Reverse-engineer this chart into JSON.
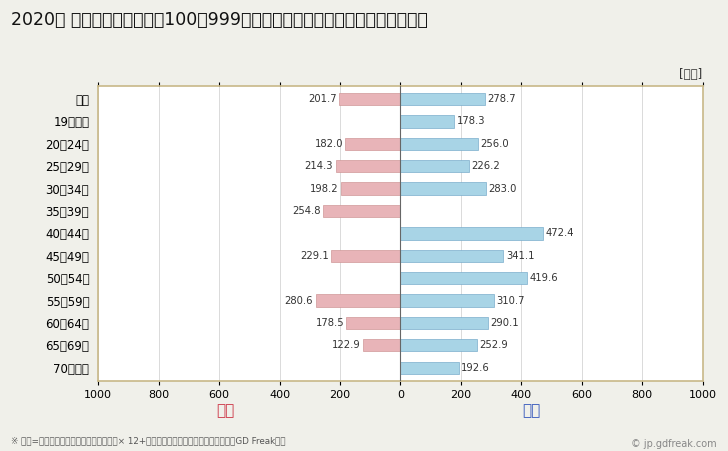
{
  "title": "2020年 民間企業（従業者数100～999人）フルタイム労働者の男女別平均年収",
  "categories": [
    "全体",
    "19歳以下",
    "20～24歳",
    "25～29歳",
    "30～34歳",
    "35～39歳",
    "40～44歳",
    "45～49歳",
    "50～54歳",
    "55～59歳",
    "60～64歳",
    "65～69歳",
    "70歳以上"
  ],
  "female_values": [
    201.7,
    0,
    182.0,
    214.3,
    198.2,
    254.8,
    0,
    229.1,
    0,
    280.6,
    178.5,
    122.9,
    0
  ],
  "male_values": [
    278.7,
    178.3,
    256.0,
    226.2,
    283.0,
    0,
    472.4,
    341.1,
    419.6,
    310.7,
    290.1,
    252.9,
    192.6
  ],
  "female_color": "#e8b4b8",
  "male_color": "#a8d4e6",
  "female_label": "女性",
  "male_label": "男性",
  "female_label_color": "#cc3344",
  "male_label_color": "#3355bb",
  "ylabel_unit": "[万円]",
  "xlim": [
    -1000,
    1000
  ],
  "xticks": [
    -1000,
    -800,
    -600,
    -400,
    -200,
    0,
    200,
    400,
    600,
    800,
    1000
  ],
  "xtick_labels": [
    "1000",
    "800",
    "600",
    "400",
    "200",
    "0",
    "200",
    "400",
    "600",
    "800",
    "1000"
  ],
  "background_color": "#f0f0ea",
  "plot_bg_color": "#ffffff",
  "grid_color": "#cccccc",
  "border_color": "#c8b888",
  "footnote": "※ 年収=「きまって支給する現金給与額」× 12+「年間賞与その他特別給与額」としてGD Freak推計",
  "copyright": "© jp.gdfreak.com",
  "title_fontsize": 12.5,
  "bar_height": 0.55
}
